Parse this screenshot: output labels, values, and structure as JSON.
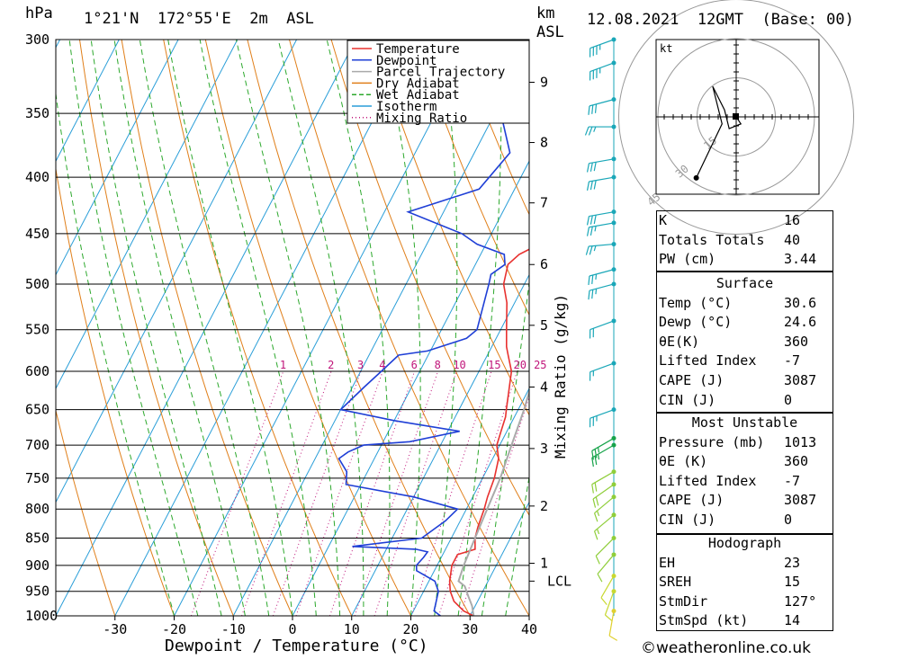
{
  "header": {
    "pressure_unit": "hPa",
    "location": "1°21'N  172°55'E  2m  ASL",
    "height_unit": "km",
    "height_unit2": "ASL",
    "datetime": "12.08.2021  12GMT  (Base: 00)"
  },
  "legend": [
    {
      "label": "Temperature",
      "color": "#e8312f",
      "style": "solid"
    },
    {
      "label": "Dewpoint",
      "color": "#1f3fd6",
      "style": "solid"
    },
    {
      "label": "Parcel Trajectory",
      "color": "#aaaaaa",
      "style": "solid"
    },
    {
      "label": "Dry Adiabat",
      "color": "#e07f1a",
      "style": "solid"
    },
    {
      "label": "Wet Adiabat",
      "color": "#2ca82c",
      "style": "dashed"
    },
    {
      "label": "Isotherm",
      "color": "#2a9ed8",
      "style": "solid"
    },
    {
      "label": "Mixing Ratio",
      "color": "#c0157a",
      "style": "dotted"
    }
  ],
  "axes": {
    "xlabel": "Dewpoint / Temperature (°C)",
    "ylabel_right": "Mixing Ratio (g/kg)",
    "lcl_label": "LCL"
  },
  "hodograph": {
    "unit": "kt",
    "ring_labels": [
      "15",
      "30",
      "45"
    ]
  },
  "indices": [
    {
      "label": "K",
      "value": "16"
    },
    {
      "label": "Totals Totals",
      "value": "40"
    },
    {
      "label": "PW (cm)",
      "value": "3.44"
    }
  ],
  "surface": {
    "title": "Surface",
    "rows": [
      {
        "label": "Temp (°C)",
        "value": "30.6"
      },
      {
        "label": "Dewp (°C)",
        "value": "24.6"
      },
      {
        "label": "θE(K)",
        "value": "360"
      },
      {
        "label": "Lifted Index",
        "value": "-7"
      },
      {
        "label": "CAPE (J)",
        "value": "3087"
      },
      {
        "label": "CIN (J)",
        "value": "0"
      }
    ]
  },
  "most_unstable": {
    "title": "Most Unstable",
    "rows": [
      {
        "label": "Pressure (mb)",
        "value": "1013"
      },
      {
        "label": "θE (K)",
        "value": "360"
      },
      {
        "label": "Lifted Index",
        "value": "-7"
      },
      {
        "label": "CAPE (J)",
        "value": "3087"
      },
      {
        "label": "CIN (J)",
        "value": "0"
      }
    ]
  },
  "hodograph_table": {
    "title": "Hodograph",
    "rows": [
      {
        "label": "EH",
        "value": "23"
      },
      {
        "label": "SREH",
        "value": "15"
      },
      {
        "label": "StmDir",
        "value": "127°"
      },
      {
        "label": "StmSpd (kt)",
        "value": "14"
      }
    ]
  },
  "credit": "©weatheronline.co.uk",
  "chart_data": {
    "type": "line",
    "x_range": [
      -40,
      40
    ],
    "p_range": [
      1000,
      300
    ],
    "pressure_ticks": [
      300,
      350,
      400,
      450,
      500,
      550,
      600,
      650,
      700,
      750,
      800,
      850,
      900,
      950,
      1000
    ],
    "temperature_ticks": [
      -30,
      -20,
      -10,
      0,
      10,
      20,
      30,
      40
    ],
    "height_ticks_km": [
      {
        "km": "1",
        "p": 896
      },
      {
        "km": "2",
        "p": 795
      },
      {
        "km": "3",
        "p": 705
      },
      {
        "km": "4",
        "p": 620
      },
      {
        "km": "5",
        "p": 545
      },
      {
        "km": "6",
        "p": 480
      },
      {
        "km": "7",
        "p": 422
      },
      {
        "km": "8",
        "p": 372
      },
      {
        "km": "9",
        "p": 328
      }
    ],
    "lcl_p": 930,
    "mixing_ratio_labels": [
      "1",
      "2",
      "3",
      "4",
      "6",
      "8",
      "10",
      "15",
      "20",
      "25"
    ],
    "mixing_ratio_label_p": 600,
    "series": [
      {
        "name": "Temperature",
        "color": "#e8312f",
        "points": [
          [
            1000,
            30.6
          ],
          [
            990,
            28.5
          ],
          [
            970,
            26
          ],
          [
            950,
            24.5
          ],
          [
            930,
            23.5
          ],
          [
            900,
            22.5
          ],
          [
            880,
            22.5
          ],
          [
            870,
            25
          ],
          [
            850,
            24
          ],
          [
            830,
            23.5
          ],
          [
            800,
            23
          ],
          [
            780,
            22.5
          ],
          [
            750,
            22
          ],
          [
            720,
            21
          ],
          [
            700,
            19.5
          ],
          [
            680,
            19
          ],
          [
            660,
            18.5
          ],
          [
            650,
            18
          ],
          [
            600,
            15.5
          ],
          [
            580,
            13.5
          ],
          [
            570,
            12.5
          ],
          [
            550,
            11
          ],
          [
            520,
            8.7
          ],
          [
            500,
            6.5
          ],
          [
            480,
            5.5
          ],
          [
            470,
            6.5
          ],
          [
            460,
            9
          ],
          [
            450,
            8
          ],
          [
            430,
            6.5
          ],
          [
            400,
            3
          ],
          [
            380,
            1
          ],
          [
            350,
            -2
          ],
          [
            330,
            -3
          ],
          [
            300,
            -7
          ]
        ]
      },
      {
        "name": "Dewpoint",
        "color": "#1f3fd6",
        "points": [
          [
            1000,
            25
          ],
          [
            990,
            23.5
          ],
          [
            970,
            23
          ],
          [
            950,
            22.5
          ],
          [
            930,
            21
          ],
          [
            910,
            17
          ],
          [
            900,
            16.5
          ],
          [
            885,
            17
          ],
          [
            875,
            17.2
          ],
          [
            870,
            15
          ],
          [
            865,
            4
          ],
          [
            850,
            15
          ],
          [
            820,
            17.5
          ],
          [
            800,
            18.5
          ],
          [
            780,
            10
          ],
          [
            760,
            -2.5
          ],
          [
            740,
            -3.5
          ],
          [
            720,
            -6
          ],
          [
            710,
            -5
          ],
          [
            700,
            -3
          ],
          [
            695,
            4.5
          ],
          [
            680,
            12
          ],
          [
            665,
            0
          ],
          [
            650,
            -10
          ],
          [
            620,
            -8
          ],
          [
            600,
            -6.5
          ],
          [
            580,
            -5
          ],
          [
            575,
            -0.5
          ],
          [
            560,
            5
          ],
          [
            550,
            6
          ],
          [
            500,
            4
          ],
          [
            490,
            3.5
          ],
          [
            480,
            5
          ],
          [
            470,
            4
          ],
          [
            460,
            -1.5
          ],
          [
            450,
            -5
          ],
          [
            430,
            -16
          ],
          [
            410,
            -6
          ],
          [
            380,
            -4
          ],
          [
            350,
            -9
          ],
          [
            330,
            -14
          ],
          [
            328,
            -9.5
          ],
          [
            325,
            -10
          ],
          [
            300,
            -8.5
          ]
        ]
      },
      {
        "name": "Parcel Trajectory",
        "color": "#aaaaaa",
        "points": [
          [
            1000,
            30.6
          ],
          [
            980,
            29.5
          ],
          [
            960,
            28
          ],
          [
            940,
            26.5
          ],
          [
            930,
            25
          ],
          [
            900,
            24.5
          ],
          [
            850,
            24
          ],
          [
            800,
            23.5
          ],
          [
            750,
            23
          ],
          [
            700,
            22
          ],
          [
            650,
            21
          ],
          [
            600,
            19.5
          ],
          [
            550,
            17.5
          ],
          [
            500,
            14.5
          ],
          [
            450,
            11
          ],
          [
            400,
            6.5
          ],
          [
            350,
            0.5
          ],
          [
            300,
            -7
          ]
        ]
      }
    ],
    "hodograph_points_kt": [
      [
        0,
        0
      ],
      [
        2,
        -3
      ],
      [
        -3,
        -5
      ],
      [
        -5,
        3
      ],
      [
        -10,
        13
      ],
      [
        -6,
        -3
      ],
      [
        -17,
        -26
      ]
    ],
    "wind_barbs": [
      {
        "p": 300,
        "dir": 250,
        "spd": 35,
        "color": "#1aa7b8"
      },
      {
        "p": 315,
        "dir": 250,
        "spd": 35,
        "color": "#1aa7b8"
      },
      {
        "p": 340,
        "dir": 255,
        "spd": 30,
        "color": "#1aa7b8"
      },
      {
        "p": 360,
        "dir": 270,
        "spd": 25,
        "color": "#1aa7b8"
      },
      {
        "p": 385,
        "dir": 260,
        "spd": 30,
        "color": "#1aa7b8"
      },
      {
        "p": 400,
        "dir": 260,
        "spd": 30,
        "color": "#1aa7b8"
      },
      {
        "p": 430,
        "dir": 260,
        "spd": 30,
        "color": "#1aa7b8"
      },
      {
        "p": 440,
        "dir": 260,
        "spd": 25,
        "color": "#1aa7b8"
      },
      {
        "p": 460,
        "dir": 265,
        "spd": 25,
        "color": "#1aa7b8"
      },
      {
        "p": 485,
        "dir": 255,
        "spd": 25,
        "color": "#1aa7b8"
      },
      {
        "p": 500,
        "dir": 255,
        "spd": 25,
        "color": "#1aa7b8"
      },
      {
        "p": 540,
        "dir": 250,
        "spd": 20,
        "color": "#1aa7b8"
      },
      {
        "p": 590,
        "dir": 250,
        "spd": 15,
        "color": "#1aa7b8"
      },
      {
        "p": 650,
        "dir": 250,
        "spd": 25,
        "color": "#1aa7b8"
      },
      {
        "p": 690,
        "dir": 240,
        "spd": 25,
        "color": "#16a34a"
      },
      {
        "p": 700,
        "dir": 240,
        "spd": 25,
        "color": "#16a34a"
      },
      {
        "p": 740,
        "dir": 240,
        "spd": 20,
        "color": "#8fce3a"
      },
      {
        "p": 760,
        "dir": 235,
        "spd": 20,
        "color": "#8fce3a"
      },
      {
        "p": 780,
        "dir": 230,
        "spd": 15,
        "color": "#8fce3a"
      },
      {
        "p": 810,
        "dir": 230,
        "spd": 15,
        "color": "#8fce3a"
      },
      {
        "p": 850,
        "dir": 225,
        "spd": 10,
        "color": "#8fce3a"
      },
      {
        "p": 880,
        "dir": 220,
        "spd": 10,
        "color": "#8fce3a"
      },
      {
        "p": 920,
        "dir": 210,
        "spd": 10,
        "color": "#c8d830"
      },
      {
        "p": 950,
        "dir": 200,
        "spd": 10,
        "color": "#c8d830"
      },
      {
        "p": 990,
        "dir": 190,
        "spd": 10,
        "color": "#e0d030"
      }
    ]
  }
}
